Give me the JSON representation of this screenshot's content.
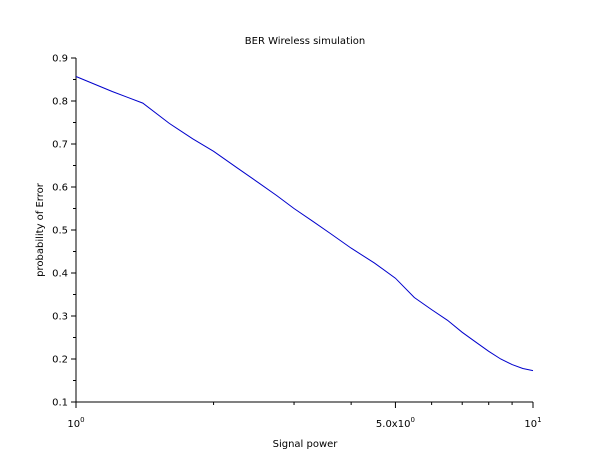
{
  "chart_data": {
    "type": "line",
    "title": "BER Wireless simulation",
    "xlabel": "Signal power",
    "ylabel": "probability of Error",
    "x_scale": "log",
    "xlim": [
      1,
      10
    ],
    "ylim": [
      0.1,
      0.9
    ],
    "grid": false,
    "legend": "none",
    "y_ticks": [
      {
        "value": 0.1,
        "label": "0.1"
      },
      {
        "value": 0.2,
        "label": "0.2"
      },
      {
        "value": 0.3,
        "label": "0.3"
      },
      {
        "value": 0.4,
        "label": "0.4"
      },
      {
        "value": 0.5,
        "label": "0.5"
      },
      {
        "value": 0.6,
        "label": "0.6"
      },
      {
        "value": 0.7,
        "label": "0.7"
      },
      {
        "value": 0.8,
        "label": "0.8"
      },
      {
        "value": 0.9,
        "label": "0.9"
      }
    ],
    "x_ticks": [
      {
        "value": 1,
        "base": "10",
        "exp": "0"
      },
      {
        "value": 5,
        "base": "5.0x10",
        "exp": "0"
      },
      {
        "value": 10,
        "base": "10",
        "exp": "1"
      }
    ],
    "x_minor_ticks": [
      2,
      3,
      4,
      6,
      7,
      8,
      9
    ],
    "series": [
      {
        "color": "#0000cc",
        "x": [
          1.0,
          1.2,
          1.4,
          1.6,
          1.8,
          2.0,
          2.25,
          2.5,
          2.75,
          3.0,
          3.3,
          3.6,
          4.0,
          4.5,
          5.0,
          5.5,
          6.0,
          6.5,
          7.0,
          7.5,
          8.0,
          8.5,
          9.0,
          9.5,
          10.0
        ],
        "y": [
          0.857,
          0.822,
          0.795,
          0.748,
          0.712,
          0.683,
          0.645,
          0.611,
          0.58,
          0.55,
          0.52,
          0.492,
          0.458,
          0.423,
          0.388,
          0.343,
          0.315,
          0.29,
          0.262,
          0.239,
          0.218,
          0.2,
          0.187,
          0.178,
          0.173
        ]
      }
    ]
  }
}
